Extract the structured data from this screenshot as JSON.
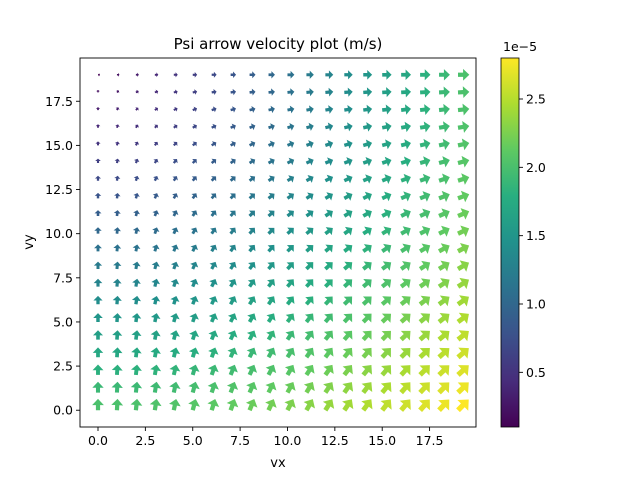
{
  "chart_data": {
    "type": "quiver",
    "title": "Psi arrow velocity plot (m/s)",
    "xlabel": "vx",
    "ylabel": "vy",
    "xlim": [
      -0.95,
      19.95
    ],
    "ylim": [
      -0.95,
      19.95
    ],
    "x_ticks": [
      0.0,
      2.5,
      5.0,
      7.5,
      10.0,
      12.5,
      15.0,
      17.5
    ],
    "x_tick_labels": [
      "0.0",
      "2.5",
      "5.0",
      "7.5",
      "10.0",
      "12.5",
      "15.0",
      "17.5"
    ],
    "y_ticks": [
      0.0,
      2.5,
      5.0,
      7.5,
      10.0,
      12.5,
      15.0,
      17.5
    ],
    "y_tick_labels": [
      "0.0",
      "2.5",
      "5.0",
      "7.5",
      "10.0",
      "12.5",
      "15.0",
      "17.5"
    ],
    "grid_x": [
      0,
      19
    ],
    "grid_y": [
      0,
      19
    ],
    "grid_step": 1,
    "field": "u ∝ x, v ∝ (19 - y); magnitude scaled to colorbar",
    "grid": false,
    "colorbar": {
      "colormap": "viridis",
      "range": [
        0.1,
        2.8
      ],
      "ticks": [
        0.5,
        1.0,
        1.5,
        2.0,
        2.5
      ],
      "tick_labels": [
        "0.5",
        "1.0",
        "1.5",
        "2.0",
        "2.5"
      ],
      "offset_label": "1e−5"
    }
  }
}
